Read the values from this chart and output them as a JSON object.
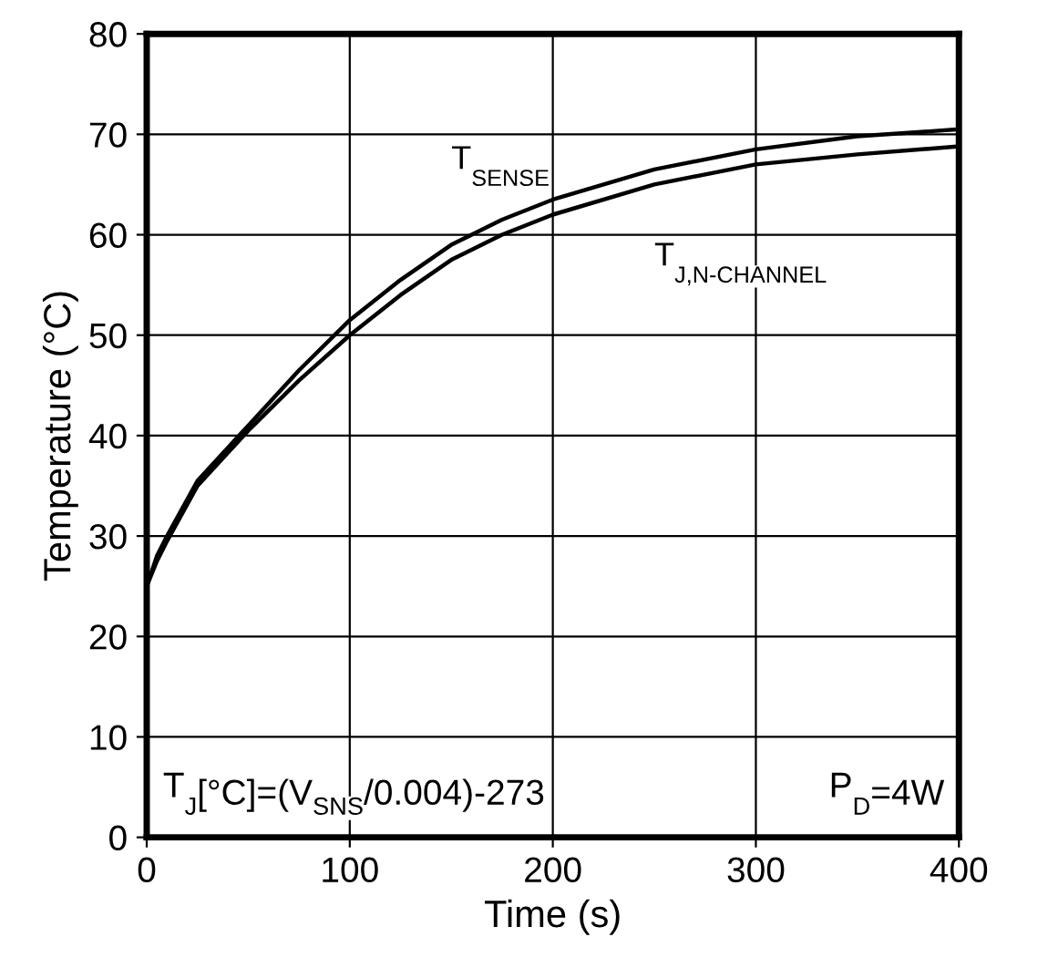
{
  "chart_data": {
    "type": "line",
    "xlabel": "Time (s)",
    "ylabel": "Temperature (°C)",
    "x": [
      0,
      5,
      10,
      25,
      50,
      75,
      100,
      125,
      150,
      175,
      200,
      250,
      300,
      350,
      400
    ],
    "series": [
      {
        "name": "T$_{SENSE}$",
        "color": "#000000",
        "values": [
          25,
          28,
          30,
          35.5,
          41,
          46.5,
          51.5,
          55.5,
          59,
          61.5,
          63.5,
          66.5,
          68.5,
          69.8,
          70.5
        ]
      },
      {
        "name": "T$_{J,N-CHANNEL}$",
        "color": "#000000",
        "values": [
          25,
          27.5,
          29.5,
          35,
          40.5,
          45.5,
          50,
          54,
          57.5,
          60,
          62,
          65,
          67,
          68,
          68.8
        ]
      }
    ],
    "annotations": [
      "T$_{J}$[°C]=(V$_{SNS}$/0.004)-273",
      "P$_{D}$=4W"
    ],
    "xlim": [
      0,
      400
    ],
    "xticks": [
      0,
      100,
      200,
      300,
      400
    ],
    "ylim": [
      0,
      80
    ],
    "yticks": [
      0,
      10,
      20,
      30,
      40,
      50,
      60,
      70,
      80
    ],
    "grid": true,
    "legend": false,
    "marker": "none",
    "line_style": "solid"
  }
}
